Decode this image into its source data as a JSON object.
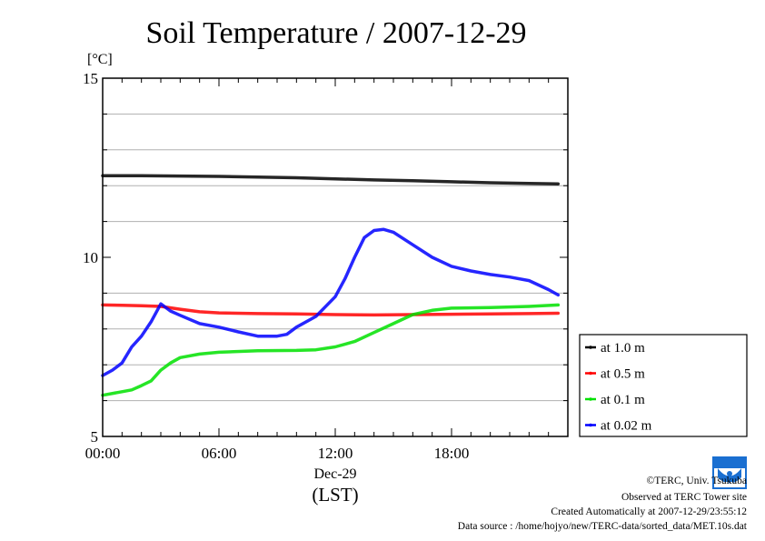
{
  "chart_data": {
    "type": "line",
    "title": "Soil Temperature / 2007-12-29",
    "ylabel": "[°C]",
    "xlabel": "Dec-29",
    "xunit": "(LST)",
    "ylim": [
      5,
      15
    ],
    "yticks": [
      {
        "value": 5,
        "label": "5"
      },
      {
        "value": 10,
        "label": "10"
      },
      {
        "value": 15,
        "label": "15"
      }
    ],
    "ygrid": [
      6,
      7,
      8,
      9,
      11,
      12,
      13,
      14
    ],
    "xlim": [
      0,
      23.5
    ],
    "xticks": [
      {
        "value": 0,
        "label": "00:00"
      },
      {
        "value": 6,
        "label": "06:00"
      },
      {
        "value": 12,
        "label": "12:00"
      },
      {
        "value": 18,
        "label": "18:00"
      }
    ],
    "grid": true,
    "legend_position": "right",
    "series": [
      {
        "name": "at 1.0 m",
        "color": "#000000",
        "x": [
          0,
          2,
          4,
          6,
          8,
          10,
          12,
          14,
          16,
          18,
          20,
          22,
          23.5
        ],
        "values": [
          12.28,
          12.28,
          12.27,
          12.26,
          12.24,
          12.22,
          12.19,
          12.16,
          12.14,
          12.11,
          12.08,
          12.06,
          12.05
        ]
      },
      {
        "name": "at 0.5 m",
        "color": "#ff0000",
        "x": [
          0,
          1,
          2,
          3,
          4,
          5,
          6,
          8,
          10,
          12,
          14,
          16,
          18,
          20,
          22,
          23.5
        ],
        "values": [
          8.67,
          8.66,
          8.65,
          8.63,
          8.55,
          8.48,
          8.45,
          8.43,
          8.42,
          8.4,
          8.39,
          8.4,
          8.41,
          8.42,
          8.43,
          8.44
        ]
      },
      {
        "name": "at 0.1 m",
        "color": "#00e000",
        "x": [
          0,
          1,
          1.5,
          2,
          2.5,
          3,
          3.5,
          4,
          5,
          6,
          8,
          10,
          11,
          12,
          13,
          14,
          15,
          16,
          17,
          18,
          20,
          22,
          23.5
        ],
        "values": [
          6.15,
          6.25,
          6.3,
          6.42,
          6.55,
          6.85,
          7.05,
          7.2,
          7.3,
          7.35,
          7.39,
          7.4,
          7.42,
          7.5,
          7.65,
          7.9,
          8.15,
          8.4,
          8.52,
          8.58,
          8.6,
          8.63,
          8.67
        ]
      },
      {
        "name": "at 0.02 m",
        "color": "#0000ff",
        "x": [
          0,
          0.5,
          1,
          1.5,
          2,
          2.5,
          3,
          3.5,
          4,
          5,
          6,
          7,
          8,
          9,
          9.5,
          10,
          11,
          12,
          12.5,
          13,
          13.5,
          14,
          14.5,
          15,
          16,
          17,
          18,
          19,
          20,
          21,
          22,
          23,
          23.5
        ],
        "values": [
          6.7,
          6.85,
          7.05,
          7.5,
          7.8,
          8.2,
          8.7,
          8.5,
          8.38,
          8.15,
          8.05,
          7.92,
          7.8,
          7.8,
          7.85,
          8.05,
          8.35,
          8.9,
          9.4,
          10.0,
          10.55,
          10.75,
          10.78,
          10.7,
          10.35,
          10.0,
          9.75,
          9.62,
          9.52,
          9.45,
          9.35,
          9.1,
          8.95
        ]
      }
    ]
  },
  "footer": {
    "copyright": "©TERC, Univ. Tsukuba",
    "site": "Observed at TERC Tower site",
    "created": "Created Automatically at 2007-12-29/23:55:12",
    "source": "Data source : /home/hojyo/new/TERC-data/sorted_data/MET.10s.dat"
  },
  "logo": {
    "text": "TERC",
    "color": "#1a6fd1"
  }
}
